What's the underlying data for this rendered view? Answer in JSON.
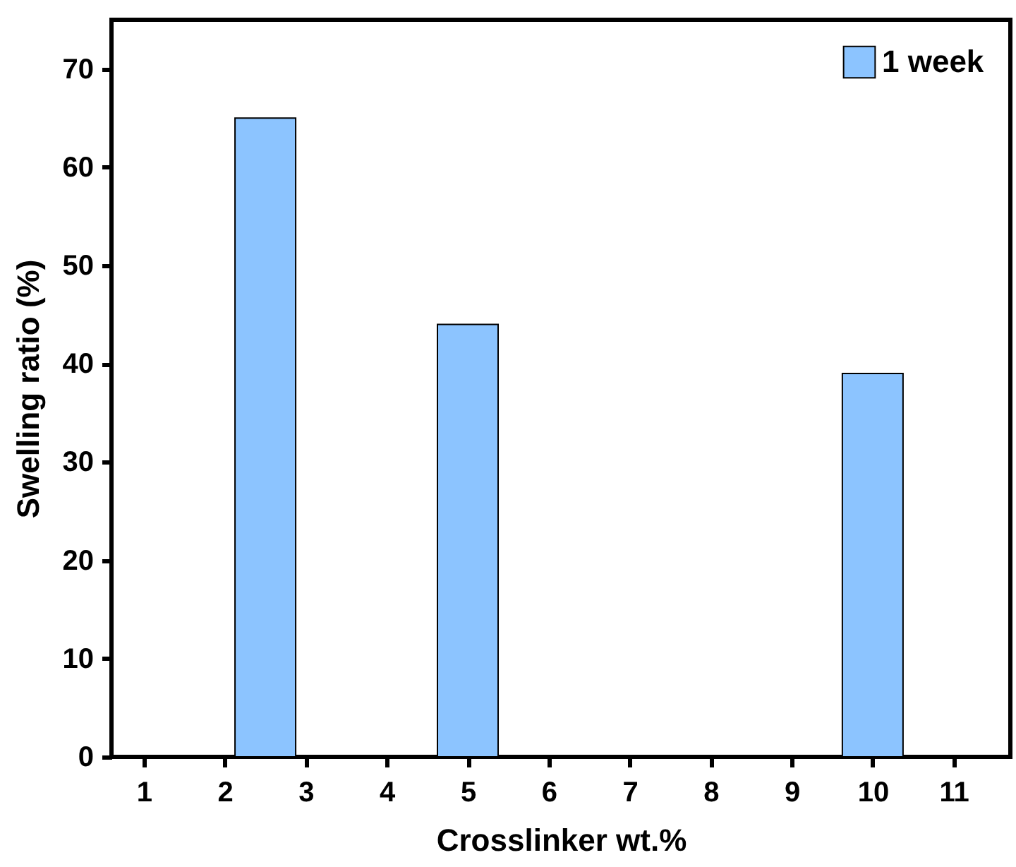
{
  "chart_data": {
    "type": "bar",
    "xlabel": "Crosslinker wt.%",
    "ylabel": "Swelling ratio (%)",
    "x": [
      2.5,
      5,
      10
    ],
    "series": [
      {
        "name": "1 week",
        "color": "#8cc4ff",
        "values": [
          65,
          44,
          39
        ]
      }
    ],
    "xlim": [
      0.6,
      11.7
    ],
    "xticks": [
      1,
      2,
      3,
      4,
      5,
      6,
      7,
      8,
      9,
      10,
      11
    ],
    "ylim": [
      0,
      75
    ],
    "yticks": [
      0,
      10,
      20,
      30,
      40,
      50,
      60,
      70
    ],
    "grid": false,
    "legend": "top right"
  }
}
